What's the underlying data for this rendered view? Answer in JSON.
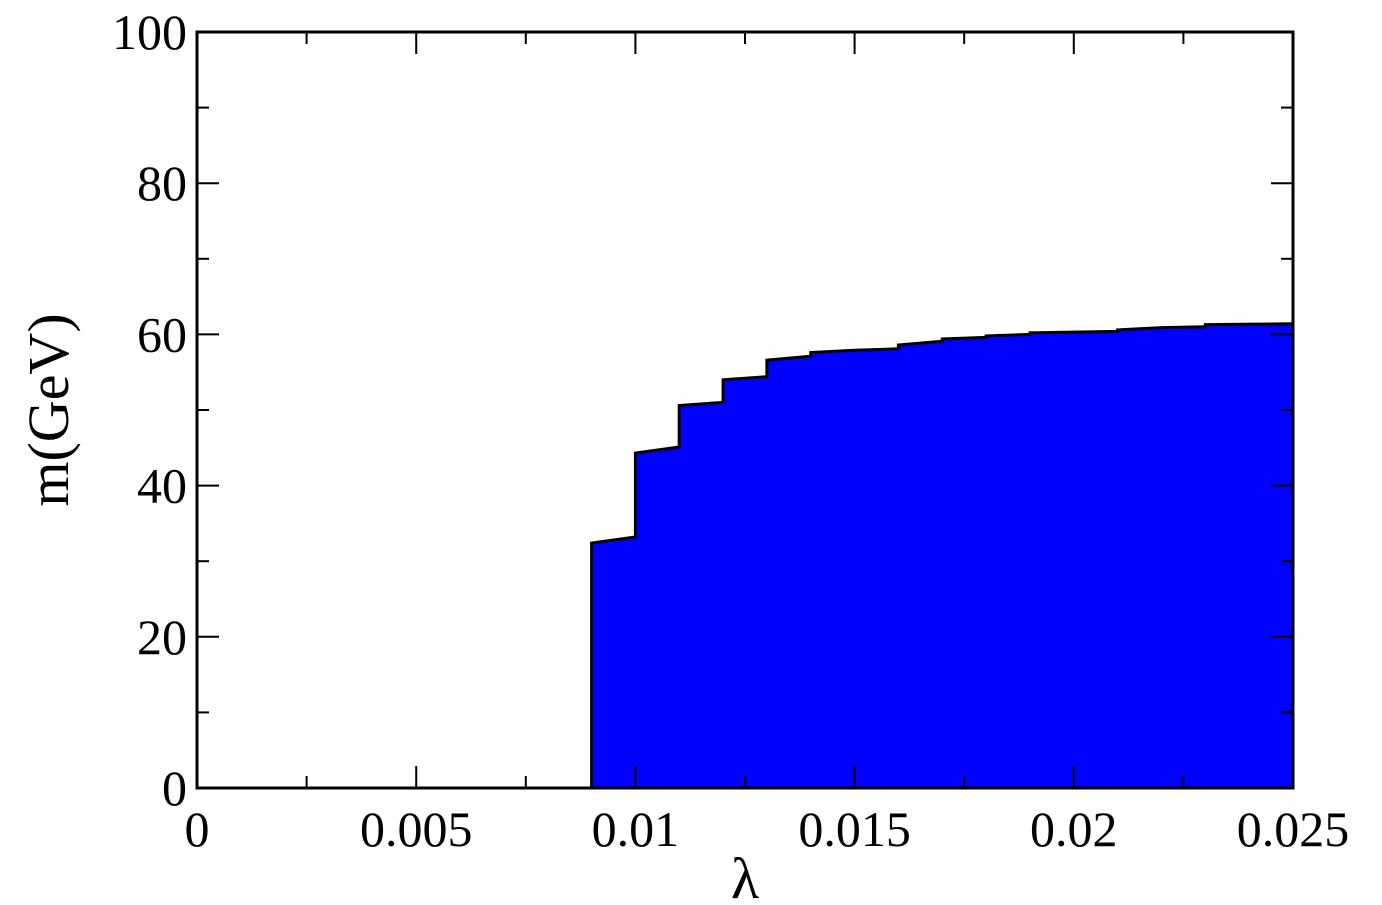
{
  "chart_data": {
    "type": "area",
    "xlabel": "λ",
    "ylabel": "m(GeV)",
    "xlim": [
      0,
      0.025
    ],
    "ylim": [
      0,
      100
    ],
    "x_ticks": [
      0,
      0.005,
      0.01,
      0.015,
      0.02,
      0.025
    ],
    "x_tick_labels": [
      "0",
      "0.005",
      "0.01",
      "0.015",
      "0.02",
      "0.025"
    ],
    "y_ticks": [
      0,
      20,
      40,
      60,
      80,
      100
    ],
    "y_tick_labels": [
      "0",
      "20",
      "40",
      "60",
      "80",
      "100"
    ],
    "x_minor_step": 0.0025,
    "y_minor_step": 10,
    "grid": false,
    "fill_color": "#0000ff",
    "edge_color": "#000000",
    "series": [
      {
        "points": [
          [
            0.009,
            0
          ],
          [
            0.009,
            32.4
          ],
          [
            0.01,
            33.2
          ],
          [
            0.01,
            44.3
          ],
          [
            0.011,
            45.1
          ],
          [
            0.011,
            50.6
          ],
          [
            0.012,
            51.0
          ],
          [
            0.012,
            54.0
          ],
          [
            0.013,
            54.4
          ],
          [
            0.013,
            56.6
          ],
          [
            0.014,
            57.1
          ],
          [
            0.014,
            57.6
          ],
          [
            0.015,
            57.9
          ],
          [
            0.016,
            58.1
          ],
          [
            0.016,
            58.6
          ],
          [
            0.017,
            59.1
          ],
          [
            0.017,
            59.4
          ],
          [
            0.018,
            59.6
          ],
          [
            0.018,
            59.8
          ],
          [
            0.019,
            60.0
          ],
          [
            0.019,
            60.2
          ],
          [
            0.021,
            60.4
          ],
          [
            0.021,
            60.6
          ],
          [
            0.022,
            60.9
          ],
          [
            0.023,
            61.0
          ],
          [
            0.023,
            61.3
          ],
          [
            0.025,
            61.4
          ],
          [
            0.025,
            0
          ]
        ]
      }
    ]
  }
}
